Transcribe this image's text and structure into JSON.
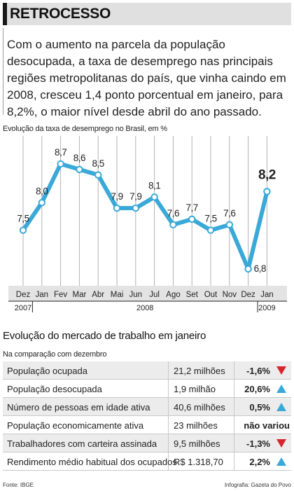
{
  "header": {
    "title": "RETROCESSO"
  },
  "intro": {
    "lines": [
      "Com o aumento na parcela da população",
      "desocupada, a taxa de desemprego nas principais",
      "regiões metropolitanas do país, que vinha caindo em",
      "2008, cresceu 1,4 ponto porcentual em janeiro, para",
      "8,2%, o maior nível desde abril do ano passado."
    ]
  },
  "chart_caption": "Evolução da taxa de desemprego no Brasil, em %",
  "chart_data": {
    "type": "line",
    "title": "Evolução da taxa de desemprego no Brasil, em %",
    "categories": [
      "Dez",
      "Jan",
      "Fev",
      "Mar",
      "Abr",
      "Mai",
      "Jun",
      "Jul",
      "Ago",
      "Set",
      "Out",
      "Nov",
      "Dez",
      "Jan"
    ],
    "years": [
      {
        "label": "2007",
        "from": 0,
        "to": 0
      },
      {
        "label": "2008",
        "from": 1,
        "to": 12
      },
      {
        "label": "2009",
        "from": 13,
        "to": 13
      }
    ],
    "values": [
      7.5,
      8.0,
      8.7,
      8.6,
      8.5,
      7.9,
      7.9,
      8.1,
      7.6,
      7.7,
      7.5,
      7.6,
      6.8,
      8.2
    ],
    "labels": [
      "7,5",
      "8,0",
      "8,7",
      "8,6",
      "8,5",
      "7,9",
      "7,9",
      "8,1",
      "7,6",
      "7,7",
      "7,5",
      "7,6",
      "6,8",
      "8,2"
    ],
    "ylim": [
      6.55,
      9.0
    ],
    "grid": "vertical",
    "line_color": "#3aa9d8",
    "point_color": "#ffffff"
  },
  "labor": {
    "title": "Evolução do mercado de trabalho em janeiro",
    "subtitle": "Na comparação com dezembro",
    "rows": [
      {
        "label": "População ocupada",
        "value": "21,2 milhões",
        "change": "-1,6%",
        "trend": "down"
      },
      {
        "label": "População desocupada",
        "value": "1,9 milhão",
        "change": "20,6%",
        "trend": "up"
      },
      {
        "label": "Número de pessoas em idade ativa",
        "value": "40,6 milhões",
        "change": "0,5%",
        "trend": "up"
      },
      {
        "label": "População economicamente ativa",
        "value": "23 milhões",
        "change": "não variou",
        "trend": "none"
      },
      {
        "label": "Trabalhadores com carteira assinada",
        "value": "9,5 milhões",
        "change": "-1,3%",
        "trend": "down"
      },
      {
        "label": "Rendimento médio habitual dos ocupados",
        "value": "R$ 1.318,70",
        "change": "2,2%",
        "trend": "up"
      }
    ],
    "colors": {
      "up": "#3aa9d8",
      "down": "#d7262b"
    }
  },
  "footer": {
    "source": "Fonte: IBGE",
    "credit": "Infografia: Gazeta do Povo"
  }
}
